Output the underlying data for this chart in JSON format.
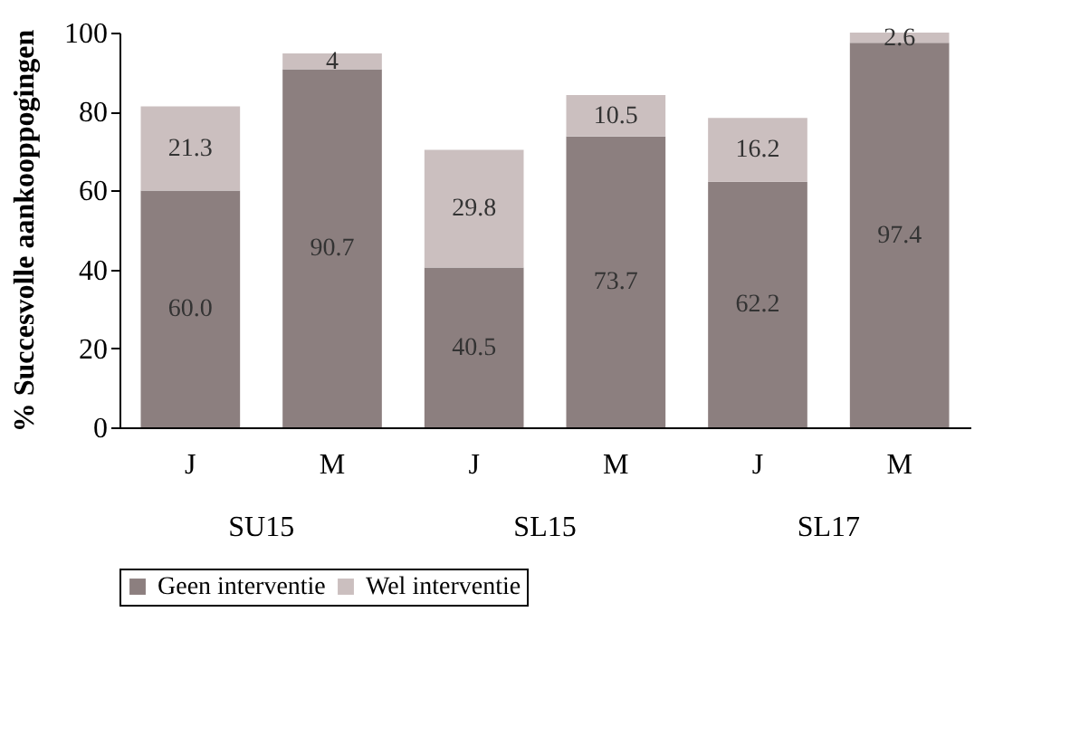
{
  "chart_data": {
    "type": "bar",
    "ylabel": "% Succesvolle aankooppogingen",
    "categories": [
      "J",
      "M",
      "J",
      "M",
      "J",
      "M"
    ],
    "series": [
      {
        "name": "Geen interventie",
        "color": "#8c7f7f",
        "values": [
          60.0,
          90.7,
          40.5,
          73.7,
          62.2,
          97.4
        ],
        "value_labels": [
          "60.0",
          "90.7",
          "40.5",
          "73.7",
          "62.2",
          "97.4"
        ]
      },
      {
        "name": "Wel interventie",
        "color": "#cbbfbf",
        "values": [
          21.3,
          4,
          29.8,
          10.5,
          16.2,
          2.6
        ],
        "value_labels": [
          "21.3",
          "4",
          "29.8",
          "10.5",
          "16.2",
          "2.6"
        ]
      }
    ],
    "stacked": true,
    "ylim": [
      0,
      100
    ],
    "yticks": [
      0,
      20,
      40,
      60,
      80,
      100
    ],
    "grid": false,
    "legend": "bottom",
    "annotations": [
      "SU15",
      "SL15",
      "SL17"
    ]
  }
}
